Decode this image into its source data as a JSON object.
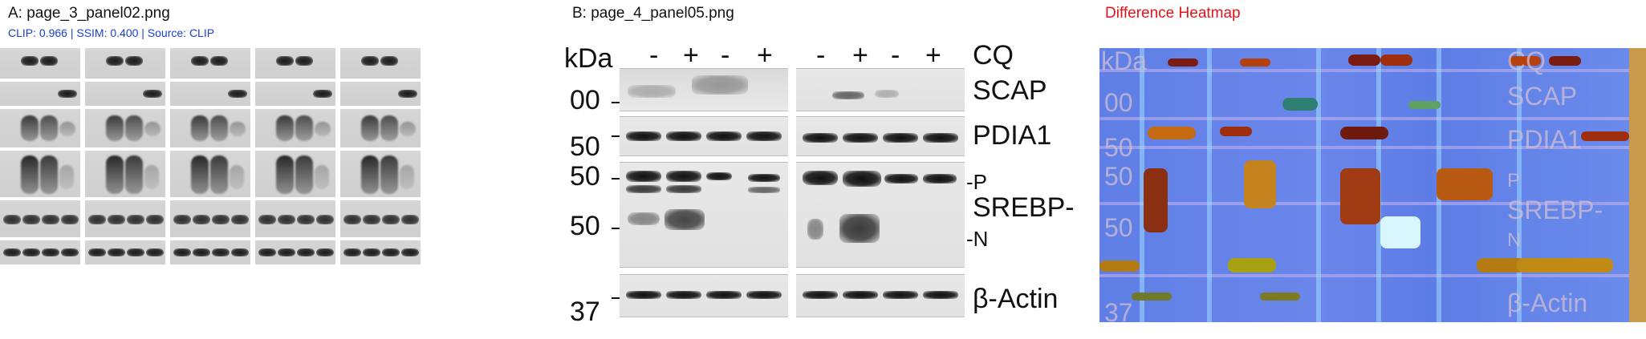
{
  "panel_a": {
    "title": "A: page_3_panel02.png",
    "metrics": "CLIP: 0.966 | SSIM: 0.400 | Source: CLIP",
    "metrics_color": "#1a3fcf"
  },
  "panel_b": {
    "title": "B: page_4_panel05.png",
    "header": {
      "kda": "kDa",
      "lanes_left": [
        "-",
        "+",
        "-",
        "+"
      ],
      "lanes_right": [
        "-",
        "+",
        "-",
        "+"
      ],
      "condition": "CQ"
    },
    "markers": [
      "00",
      "50",
      "50",
      "50",
      "37"
    ],
    "proteins": [
      "SCAP",
      "PDIA1",
      "-P",
      "SREBP-",
      "-N",
      "β-Actin"
    ]
  },
  "panel_c": {
    "title": "Difference Heatmap",
    "title_color": "#e0141b",
    "ghost_labels": [
      "kDa",
      "CQ",
      "SCAP",
      "PDIA1",
      "P",
      "SREBP-",
      "N",
      "β-Actin",
      "00",
      "50",
      "50",
      "50",
      "37"
    ]
  }
}
